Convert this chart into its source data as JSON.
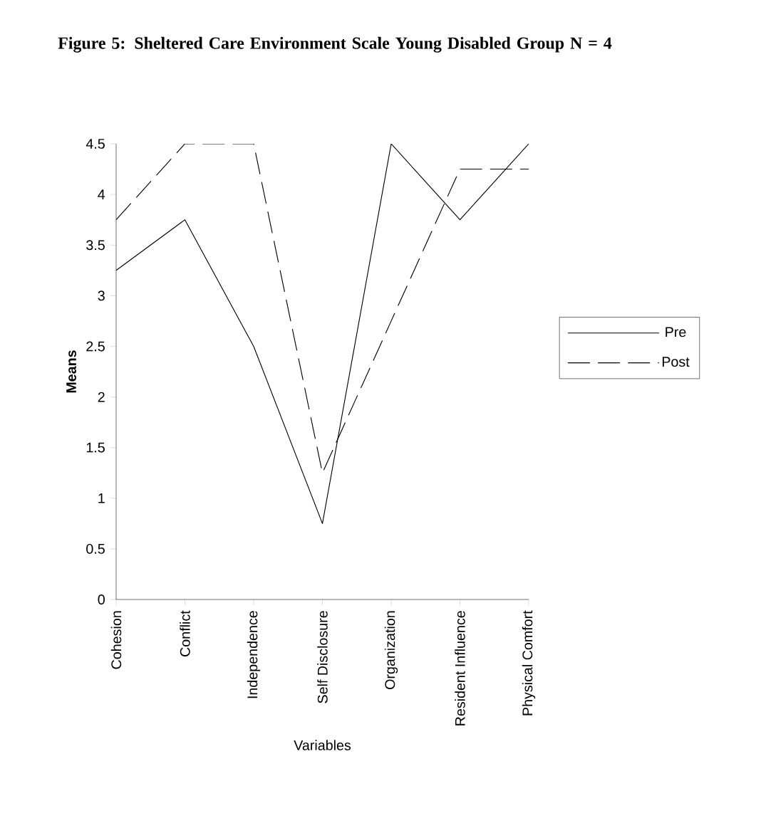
{
  "chart_data": {
    "type": "line",
    "title": "Figure 5:    Sheltered Care Environment Scale  Young Disabled Group     N = 4",
    "xlabel": "Variables",
    "ylabel": "Means",
    "categories": [
      "Cohesion",
      "Conflict",
      "Independence",
      "Self Disclosure",
      "Organization",
      "Resident Influence",
      "Physical Comfort"
    ],
    "series": [
      {
        "name": "Pre",
        "color": "#000000",
        "line_style": "solid",
        "values": [
          3.25,
          3.75,
          2.5,
          0.75,
          4.5,
          3.75,
          4.5
        ]
      },
      {
        "name": "Post",
        "color": "#000000",
        "line_style": "dashed",
        "values": [
          3.75,
          4.5,
          4.5,
          1.25,
          2.75,
          4.25,
          4.25
        ]
      }
    ],
    "ylim": [
      0,
      4.5
    ],
    "yticks": [
      0,
      0.5,
      1,
      1.5,
      2,
      2.5,
      3,
      3.5,
      4,
      4.5
    ],
    "legend": "right"
  }
}
